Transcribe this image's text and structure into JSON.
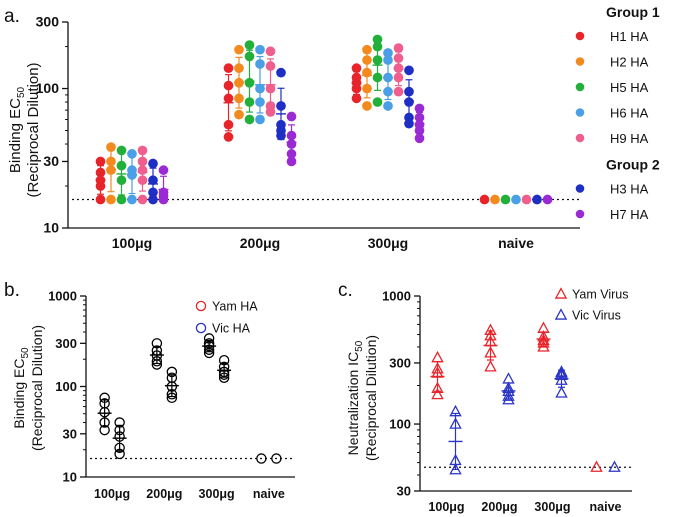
{
  "colors": {
    "H1 HA": "#e8242b",
    "H2 HA": "#f28a1e",
    "H5 HA": "#22b03a",
    "H6 HA": "#4a9fe6",
    "H9 HA": "#ef5f8e",
    "H3 HA": "#1f2fc4",
    "H7 HA": "#9a2bd4",
    "yam": "#e8242b",
    "vic": "#2a35c6"
  },
  "chart_data": [
    {
      "panel": "a.",
      "type": "scatter",
      "ylabel_line1": "Binding EC",
      "ylabel_sub": "50",
      "ylabel_line2": "(Reciprocal Dilution)",
      "yscale": "log",
      "ylim": [
        10,
        300
      ],
      "yticks": [
        "10",
        "30",
        "100",
        "300"
      ],
      "ytick_values": [
        10,
        30,
        100,
        300
      ],
      "categories": [
        "100μg",
        "200μg",
        "300μg",
        "naive"
      ],
      "legend_groups": [
        {
          "title": "Group 1",
          "items": [
            "H1 HA",
            "H2 HA",
            "H5 HA",
            "H6 HA",
            "H9 HA"
          ]
        },
        {
          "title": "Group 2",
          "items": [
            "H3 HA",
            "H7 HA"
          ]
        }
      ],
      "detection_limit": 16,
      "series": [
        {
          "name": "H1 HA",
          "marker": "circle",
          "values": [
            [
              30,
              25,
              20,
              22,
              16
            ],
            [
              140,
              105,
              85,
              55,
              45
            ],
            [
              140,
              120,
              110,
              100,
              85
            ],
            [
              16
            ]
          ]
        },
        {
          "name": "H2 HA",
          "marker": "circle",
          "values": [
            [
              38,
              30,
              26,
              16
            ],
            [
              190,
              140,
              110,
              85,
              65
            ],
            [
              190,
              160,
              130,
              100,
              75
            ],
            [
              16
            ]
          ]
        },
        {
          "name": "H5 HA",
          "marker": "circle",
          "values": [
            [
              36,
              28,
              22,
              16
            ],
            [
              205,
              170,
              110,
              80,
              60
            ],
            [
              225,
              200,
              160,
              120,
              80
            ],
            [
              16
            ]
          ]
        },
        {
          "name": "H6 HA",
          "marker": "circle",
          "values": [
            [
              34,
              26,
              24,
              16
            ],
            [
              190,
              150,
              100,
              80,
              60
            ],
            [
              180,
              160,
              120,
              95,
              75
            ],
            [
              16
            ]
          ]
        },
        {
          "name": "H9 HA",
          "marker": "circle",
          "values": [
            [
              36,
              30,
              26,
              22,
              16
            ],
            [
              185,
              145,
              100,
              75,
              68
            ],
            [
              195,
              165,
              140,
              120,
              95
            ],
            [
              16
            ]
          ]
        },
        {
          "name": "H3 HA",
          "marker": "circle",
          "values": [
            [
              29,
              22,
              18,
              16
            ],
            [
              130,
              75,
              55,
              50,
              46
            ],
            [
              135,
              95,
              80,
              62,
              56
            ],
            [
              16
            ]
          ]
        },
        {
          "name": "H7 HA",
          "marker": "circle",
          "values": [
            [
              26,
              18,
              17,
              16
            ],
            [
              63,
              46,
              40,
              34,
              30
            ],
            [
              72,
              62,
              55,
              50,
              44
            ],
            [
              16
            ]
          ]
        }
      ]
    },
    {
      "panel": "b.",
      "type": "scatter",
      "ylabel_line1": "Binding EC",
      "ylabel_sub": "50",
      "ylabel_line2": "(Reciprocal Dilution)",
      "yscale": "log",
      "ylim": [
        10,
        1000
      ],
      "yticks": [
        "10",
        "30",
        "100",
        "300",
        "1000"
      ],
      "ytick_values": [
        10,
        30,
        100,
        300,
        1000
      ],
      "categories": [
        "100μg",
        "200μg",
        "300μg",
        "naive"
      ],
      "detection_limit": 16,
      "series": [
        {
          "name": "Yam HA",
          "marker": "circle",
          "values": [
            [
              75,
              65,
              52,
              40,
              33
            ],
            [
              300,
              250,
              220,
              190,
              175
            ],
            [
              340,
              300,
              280,
              255,
              235
            ],
            [
              16
            ]
          ]
        },
        {
          "name": "Vic HA",
          "marker": "circle",
          "values": [
            [
              40,
              33,
              28,
              21,
              18
            ],
            [
              145,
              125,
              100,
              82,
              75
            ],
            [
              195,
              165,
              145,
              135,
              125
            ],
            [
              16
            ]
          ]
        }
      ]
    },
    {
      "panel": "c.",
      "type": "scatter",
      "ylabel_line1": "Neutralization IC",
      "ylabel_sub": "50",
      "ylabel_line2": "(Reciprocal Dilution)",
      "yscale": "log",
      "ylim": [
        30,
        1000
      ],
      "yticks": [
        "30",
        "100",
        "300",
        "1000"
      ],
      "ytick_values": [
        30,
        100,
        300,
        1000
      ],
      "categories": [
        "100μg",
        "200μg",
        "300μg",
        "naive"
      ],
      "detection_limit": 46,
      "series": [
        {
          "name": "Yam Virus",
          "marker": "triangle",
          "values": [
            [
              330,
              270,
              250,
              190,
              170
            ],
            [
              540,
              490,
              440,
              360,
              280
            ],
            [
              560,
              480,
              450,
              430,
              400
            ],
            [
              46
            ]
          ]
        },
        {
          "name": "Vic Virus",
          "marker": "triangle",
          "values": [
            [
              125,
              100,
              52,
              44
            ],
            [
              225,
              190,
              180,
              165,
              155
            ],
            [
              255,
              250,
              240,
              220,
              175
            ],
            [
              46
            ]
          ]
        }
      ]
    }
  ]
}
